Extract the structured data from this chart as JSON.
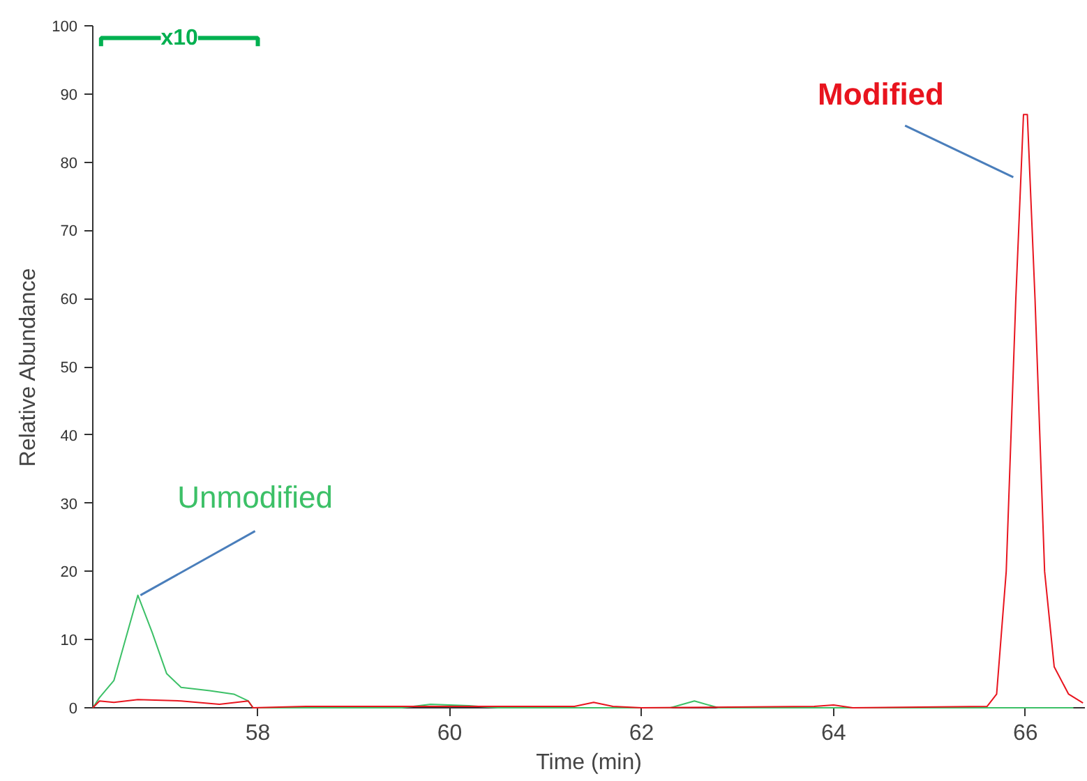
{
  "chart_data": {
    "type": "line",
    "xlabel": "Time (min)",
    "ylabel": "Relative Abundance",
    "xlim": [
      56.28,
      66.62
    ],
    "ylim": [
      0,
      100
    ],
    "xticks": [
      58,
      60,
      62,
      64,
      66
    ],
    "yticks": [
      0,
      10,
      20,
      30,
      40,
      50,
      60,
      70,
      80,
      90,
      100
    ],
    "grid": false,
    "legend": false,
    "annotations": [
      "x10"
    ],
    "series": [
      {
        "name": "Unmodified",
        "color": "#3cc067",
        "x": [
          56.28,
          56.35,
          56.5,
          56.6,
          56.75,
          56.9,
          57.05,
          57.2,
          57.5,
          57.75,
          57.9,
          57.95,
          59.5,
          59.8,
          60.2,
          60.5,
          62.3,
          62.55,
          62.8,
          66.5
        ],
        "values": [
          0,
          1.5,
          4,
          9,
          16.5,
          11,
          5,
          3,
          2.5,
          2,
          1,
          0,
          0,
          0.5,
          0.3,
          0,
          0,
          1,
          0,
          0
        ]
      },
      {
        "name": "Modified",
        "color": "#e8141e",
        "x": [
          56.28,
          56.35,
          56.5,
          56.75,
          57.2,
          57.6,
          57.9,
          57.95,
          58.5,
          61.3,
          61.5,
          61.7,
          62,
          63.8,
          64,
          64.2,
          65.6,
          65.7,
          65.8,
          65.9,
          65.98,
          66.02,
          66.1,
          66.2,
          66.3,
          66.45,
          66.6
        ],
        "values": [
          0,
          1,
          0.8,
          1.2,
          1,
          0.5,
          1,
          0,
          0.2,
          0.2,
          0.8,
          0.2,
          0,
          0.2,
          0.4,
          0,
          0.2,
          2,
          20,
          60,
          87,
          87,
          60,
          20,
          6,
          2,
          0.7
        ]
      }
    ]
  }
}
